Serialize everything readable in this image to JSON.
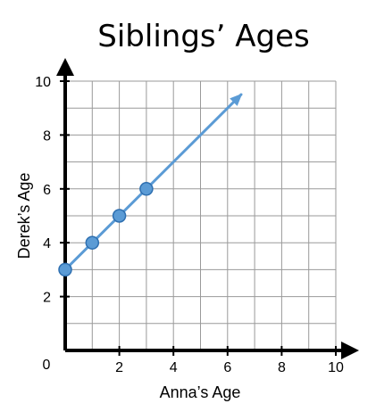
{
  "chart_data": {
    "type": "line",
    "title": "Siblings’ Ages",
    "xlabel": "Anna’s Age",
    "ylabel": "Derek’s Age",
    "xlim": [
      0,
      10
    ],
    "ylim": [
      0,
      10
    ],
    "grid": true,
    "origin_label": "0",
    "x_ticks": [
      {
        "value": 2,
        "label": "2"
      },
      {
        "value": 4,
        "label": "4"
      },
      {
        "value": 6,
        "label": "6"
      },
      {
        "value": 8,
        "label": "8"
      },
      {
        "value": 10,
        "label": "10"
      }
    ],
    "y_ticks": [
      {
        "value": 2,
        "label": "2"
      },
      {
        "value": 4,
        "label": "4"
      },
      {
        "value": 6,
        "label": "6"
      },
      {
        "value": 8,
        "label": "8"
      },
      {
        "value": 10,
        "label": "10"
      }
    ],
    "series": [
      {
        "points": [
          {
            "x": 0,
            "y": 3
          },
          {
            "x": 1,
            "y": 4
          },
          {
            "x": 2,
            "y": 5
          },
          {
            "x": 3,
            "y": 6
          }
        ],
        "line_end": {
          "x": 6.5,
          "y": 9.5
        },
        "color": "#5b9bd5",
        "marker_edge": "#2e6fb0"
      }
    ]
  }
}
